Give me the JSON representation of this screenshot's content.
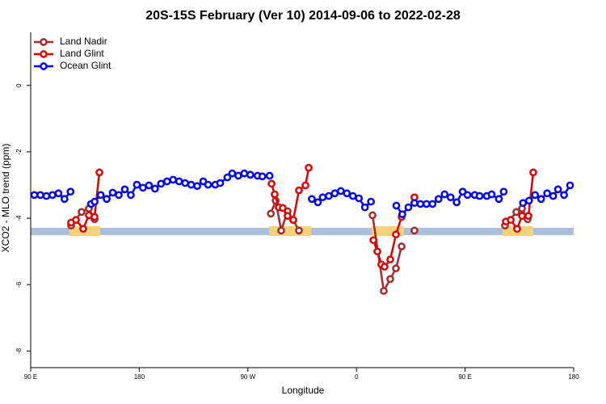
{
  "chart_data": {
    "type": "line",
    "title": "20S-15S February (Ver 10)   2014-09-06 to 2022-02-28",
    "xlabel": "Longitude",
    "ylabel": "XCO2 - MLO trend (ppm)",
    "xlim": [
      90,
      540
    ],
    "ylim": [
      -8.5,
      1.6
    ],
    "xticks": [
      {
        "value": 90,
        "label": "90 E"
      },
      180,
      {
        "value": 270,
        "label": "90 W"
      },
      {
        "value": 360,
        "label": "0"
      },
      {
        "value": 450,
        "label": "90 E"
      },
      {
        "value": 540,
        "label": "180"
      }
    ],
    "yticks": [
      0,
      -2,
      -4,
      -6,
      -8
    ],
    "legend": "topleft",
    "series": [
      {
        "name": "Land Nadir",
        "color": "#a52a2a",
        "x": [
          123.5,
          132.2,
          138.2,
          142.9,
          null,
          289,
          293,
          297.6,
          302.9,
          307.6,
          312.3,
          null,
          373.3,
          382.6,
          388,
          392.7,
          397.4,
          null,
          408,
          null,
          483.1,
          492.5,
          497.2,
          501.8
        ],
        "values": [
          -4.22,
          -3.81,
          -3.71,
          -4.03,
          null,
          -3.86,
          -3.47,
          -4.37,
          -3.79,
          -4.05,
          -4.37,
          null,
          -3.91,
          -6.19,
          -5.83,
          -5.51,
          -4.85,
          null,
          -4.37,
          null,
          -4.22,
          -3.81,
          -3.71,
          -4.03
        ]
      },
      {
        "name": "Land Glint",
        "color": "#e00000",
        "x": [
          123.5,
          127.5,
          133.5,
          138.2,
          142.9,
          146.9,
          null,
          289.6,
          292.2,
          295.6,
          298.9,
          302.9,
          307.6,
          312.3,
          317.7,
          320.4,
          null,
          374,
          377.3,
          380.6,
          383.3,
          388,
          392.7,
          397.4,
          null,
          408,
          null,
          483.8,
          487.8,
          493.1,
          497.2,
          502.5,
          506.5
        ],
        "values": [
          -4.13,
          -4.05,
          -4.32,
          -3.91,
          -3.96,
          -2.62,
          null,
          -2.96,
          -3.28,
          -3.67,
          -3.69,
          -3.93,
          -4.05,
          -3.16,
          -3.01,
          -2.48,
          null,
          -4.66,
          -5.0,
          -5.39,
          -5.46,
          -5.24,
          -4.49,
          -3.96,
          null,
          -3.37,
          null,
          -4.1,
          -4.05,
          -4.32,
          -3.93,
          -3.93,
          -2.62
        ]
      },
      {
        "name": "Ocean Glint",
        "color": "#0000ff",
        "x": [
          93,
          98,
          103,
          108,
          113,
          118,
          123,
          null,
          140,
          143,
          148,
          153,
          158,
          163,
          168,
          173,
          178,
          183,
          188,
          193,
          198,
          203,
          208,
          213,
          218,
          223,
          228,
          233,
          237,
          243,
          247,
          253,
          257,
          262,
          267,
          272,
          278,
          282,
          288,
          null,
          323,
          328,
          332,
          337,
          342,
          347,
          352,
          357,
          362,
          367,
          372,
          null,
          393,
          398,
          403,
          408,
          413,
          418,
          423,
          428,
          433,
          438,
          443,
          448,
          452,
          458,
          462,
          468,
          472,
          478,
          482,
          null,
          498,
          503,
          508,
          513,
          518,
          523,
          527,
          532,
          537
        ],
        "values": [
          -3.3,
          -3.3,
          -3.33,
          -3.3,
          -3.25,
          -3.42,
          -3.2,
          null,
          -3.57,
          -3.5,
          -3.3,
          -3.42,
          -3.23,
          -3.3,
          -3.13,
          -3.3,
          -2.99,
          -3.08,
          -3.01,
          -3.11,
          -2.96,
          -2.89,
          -2.84,
          -2.89,
          -2.94,
          -2.99,
          -3.03,
          -2.89,
          -2.99,
          -2.99,
          -2.94,
          -2.77,
          -2.65,
          -2.72,
          -2.65,
          -2.69,
          -2.72,
          -2.74,
          -2.72,
          null,
          -3.42,
          -3.52,
          -3.37,
          -3.33,
          -3.25,
          -3.18,
          -3.25,
          -3.33,
          -3.4,
          -3.67,
          -3.5,
          null,
          -3.62,
          -3.88,
          -3.67,
          -3.54,
          -3.57,
          -3.57,
          -3.57,
          -3.42,
          -3.28,
          -3.37,
          -3.52,
          -3.2,
          -3.3,
          -3.3,
          -3.33,
          -3.33,
          -3.28,
          -3.42,
          -3.2,
          null,
          -3.54,
          -3.47,
          -3.3,
          -3.42,
          -3.25,
          -3.33,
          -3.13,
          -3.3,
          -3.01
        ]
      }
    ]
  }
}
